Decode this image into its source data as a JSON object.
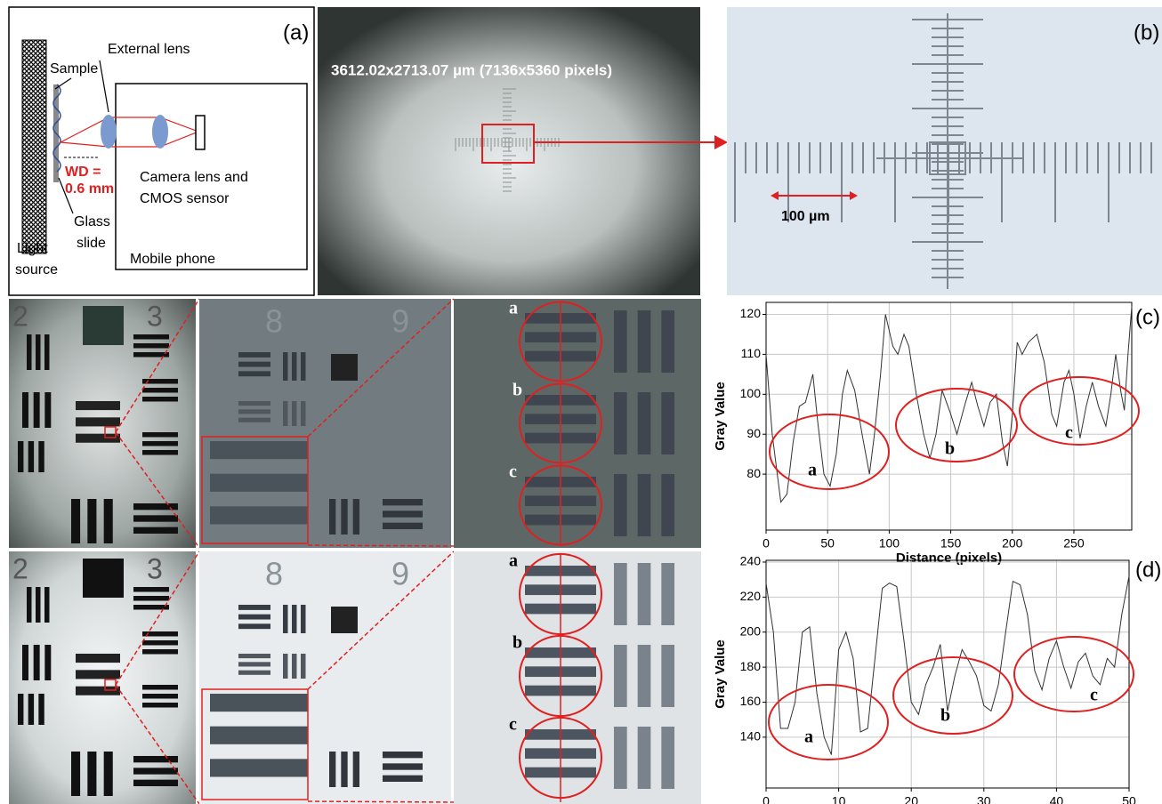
{
  "panel_a": {
    "label": "(a)",
    "external_lens": "External lens",
    "sample": "Sample",
    "wd_line1": "WD =",
    "wd_line2": "0.6 mm",
    "camera_line1": "Camera lens and",
    "camera_line2": "CMOS sensor",
    "glass_line1": "Glass",
    "glass_line2": "slide",
    "light_line1": "Light",
    "light_line2": "source",
    "mobile_phone": "Mobile phone"
  },
  "panel_b": {
    "label": "(b)",
    "field_of_view": "3612.02x2713.07 µm (7136x5360 pixels)",
    "scale_bar": "100 µm"
  },
  "panel_c": {
    "label": "(c)",
    "target_groups": [
      "2",
      "3"
    ],
    "zoom_groups": [
      "8",
      "9"
    ],
    "ellipse_labels": [
      "a",
      "b",
      "c"
    ]
  },
  "panel_d": {
    "label": "(d)",
    "target_groups": [
      "2",
      "3"
    ],
    "zoom_groups": [
      "8",
      "9"
    ],
    "ellipse_labels": [
      "a",
      "b",
      "c"
    ]
  },
  "chart_data": [
    {
      "type": "line",
      "xlabel": "Distance (pixels)",
      "ylabel": "Gray Value",
      "color": "#333333",
      "grid": true,
      "x": [
        0,
        5,
        12,
        17,
        22,
        27,
        32,
        38,
        42,
        47,
        52,
        57,
        62,
        66,
        72,
        78,
        84,
        88,
        93,
        97,
        103,
        107,
        112,
        116,
        122,
        128,
        133,
        138,
        143,
        150,
        155,
        162,
        167,
        172,
        177,
        182,
        187,
        192,
        196,
        200,
        204,
        208,
        213,
        220,
        226,
        232,
        236,
        242,
        246,
        250,
        255,
        260,
        265,
        270,
        276,
        280,
        284,
        288,
        291,
        294,
        297
      ],
      "values": [
        110,
        90,
        73,
        75,
        88,
        97,
        98,
        105,
        93,
        80,
        77,
        85,
        100,
        106,
        101,
        90,
        80,
        90,
        105,
        120,
        112,
        110,
        115,
        112,
        100,
        90,
        84,
        90,
        101,
        95,
        90,
        98,
        103,
        97,
        92,
        98,
        100,
        88,
        82,
        95,
        113,
        110,
        113,
        115,
        108,
        95,
        92,
        103,
        106,
        100,
        89,
        97,
        103,
        97,
        92,
        100,
        110,
        101,
        96,
        110,
        122
      ],
      "xlim": [
        0,
        297
      ],
      "ylim": [
        66,
        123
      ],
      "xticks": [
        0,
        50,
        100,
        150,
        200,
        250
      ],
      "yticks": [
        80,
        90,
        100,
        110,
        120
      ],
      "annotations": [
        "a",
        "b",
        "c"
      ]
    },
    {
      "type": "line",
      "xlabel": "Distance (pixels)",
      "ylabel": "Gray Value",
      "color": "#333333",
      "grid": true,
      "x": [
        0,
        1,
        2,
        3,
        4,
        5,
        6,
        7,
        8,
        9,
        10,
        11,
        12,
        13,
        14,
        15,
        16,
        17,
        18,
        19,
        20,
        21,
        22,
        23,
        24,
        25,
        26,
        27,
        28,
        29,
        30,
        31,
        32,
        33,
        34,
        35,
        36,
        37,
        38,
        39,
        40,
        41,
        42,
        43,
        44,
        45,
        46,
        47,
        48,
        49,
        50
      ],
      "values": [
        228,
        200,
        145,
        145,
        160,
        200,
        203,
        165,
        140,
        130,
        190,
        200,
        185,
        143,
        145,
        185,
        225,
        228,
        226,
        195,
        160,
        153,
        170,
        180,
        193,
        155,
        175,
        190,
        183,
        175,
        158,
        155,
        170,
        200,
        229,
        227,
        210,
        178,
        167,
        185,
        195,
        180,
        168,
        183,
        188,
        175,
        170,
        185,
        180,
        210,
        232
      ],
      "xlim": [
        0,
        50
      ],
      "ylim": [
        111,
        241
      ],
      "xticks": [
        0,
        10,
        20,
        30,
        40,
        50
      ],
      "yticks": [
        140,
        160,
        180,
        200,
        220,
        240
      ],
      "annotations": [
        "a",
        "b",
        "c"
      ]
    }
  ]
}
